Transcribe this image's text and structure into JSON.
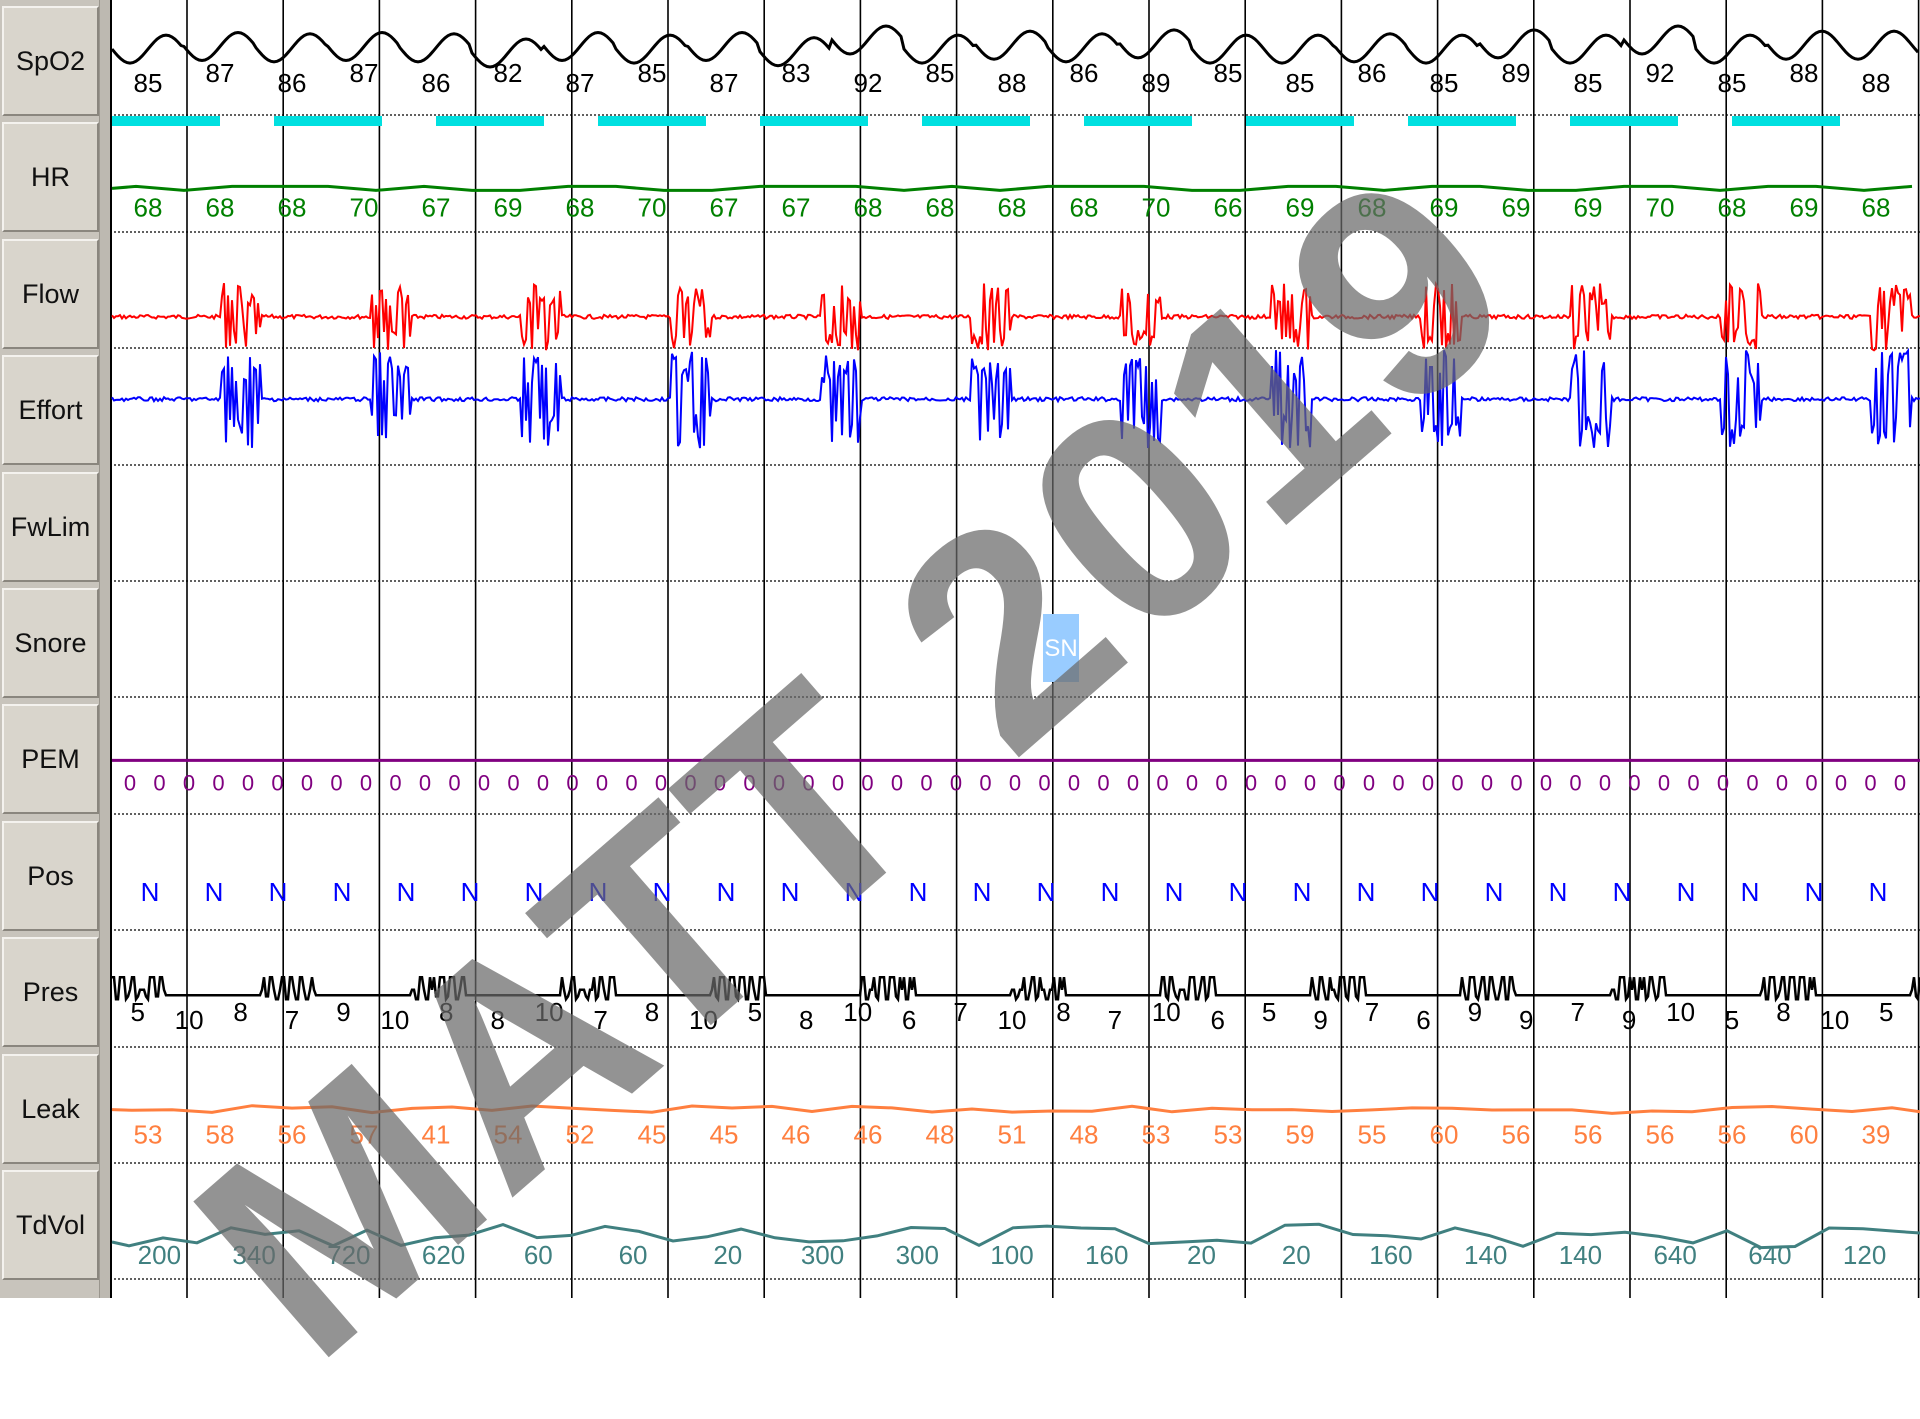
{
  "channels": [
    {
      "key": "spo2",
      "label": "SpO2"
    },
    {
      "key": "hr",
      "label": "HR"
    },
    {
      "key": "flow",
      "label": "Flow"
    },
    {
      "key": "effort",
      "label": "Effort"
    },
    {
      "key": "fwlim",
      "label": "FwLim"
    },
    {
      "key": "snore",
      "label": "Snore"
    },
    {
      "key": "pem",
      "label": "PEM"
    },
    {
      "key": "pos",
      "label": "Pos"
    },
    {
      "key": "pres",
      "label": "Pres"
    },
    {
      "key": "leak",
      "label": "Leak"
    },
    {
      "key": "tdvol",
      "label": "TdVol"
    }
  ],
  "colors": {
    "spo2": "#000000",
    "spo2_desat": "#00e0e0",
    "hr": "#008000",
    "flow": "#ff0000",
    "effort": "#0000ff",
    "snore_event": "#99ccff",
    "pem": "#800080",
    "pos": "#0000ff",
    "pres": "#000000",
    "leak": "#ff7f3f",
    "tdvol": "#408080",
    "grid": "#000000"
  },
  "spo2_values": [
    "85",
    "87",
    "86",
    "87",
    "86",
    "82",
    "87",
    "85",
    "87",
    "83",
    "92",
    "85",
    "88",
    "86",
    "89",
    "85",
    "85",
    "86",
    "85",
    "89",
    "85",
    "92",
    "85",
    "88",
    "88"
  ],
  "hr_values": [
    "68",
    "68",
    "68",
    "70",
    "67",
    "69",
    "68",
    "70",
    "67",
    "67",
    "68",
    "68",
    "68",
    "68",
    "70",
    "66",
    "69",
    "68",
    "69",
    "69",
    "69",
    "70",
    "68",
    "69",
    "68"
  ],
  "snore_event": {
    "label": "SN"
  },
  "pem_value": "0",
  "pos_value": "N",
  "pres_values": [
    "5",
    "10",
    "8",
    "7",
    "9",
    "10",
    "8",
    "8",
    "10",
    "7",
    "8",
    "10",
    "5",
    "8",
    "10",
    "6",
    "7",
    "10",
    "8",
    "7",
    "10",
    "6",
    "5",
    "9",
    "7",
    "6",
    "9",
    "9",
    "7",
    "9",
    "10",
    "5",
    "8",
    "10",
    "5"
  ],
  "leak_values": [
    "53",
    "58",
    "56",
    "57",
    "41",
    "54",
    "52",
    "45",
    "45",
    "46",
    "46",
    "48",
    "51",
    "48",
    "53",
    "53",
    "59",
    "55",
    "60",
    "56",
    "56",
    "56",
    "56",
    "60",
    "39"
  ],
  "tdvol_values": [
    "200",
    "340",
    "720",
    "620",
    "60",
    "60",
    "20",
    "300",
    "300",
    "100",
    "160",
    "20",
    "20",
    "160",
    "140",
    "140",
    "640",
    "640",
    "120"
  ],
  "watermark": "MATT 2019"
}
